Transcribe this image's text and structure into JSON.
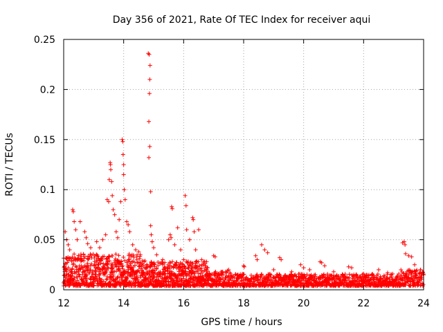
{
  "chart_data": {
    "type": "scatter",
    "title": "Day 356 of 2021, Rate Of TEC Index for receiver aqui",
    "xlabel": "GPS time / hours",
    "ylabel": "ROTI / TECUs",
    "xlim": [
      12,
      24
    ],
    "ylim": [
      0,
      0.25
    ],
    "xticks": [
      "12",
      "14",
      "16",
      "18",
      "20",
      "22",
      "24"
    ],
    "yticks": [
      "0",
      "0.05",
      "0.1",
      "0.15",
      "0.2",
      "0.25"
    ],
    "grid": true,
    "marker": "+",
    "series": [
      {
        "name": "ROTI",
        "color": "#ff0000",
        "points": [
          [
            12.05,
            0.058
          ],
          [
            12.1,
            0.05
          ],
          [
            12.15,
            0.045
          ],
          [
            12.2,
            0.04
          ],
          [
            12.3,
            0.08
          ],
          [
            12.32,
            0.078
          ],
          [
            12.35,
            0.068
          ],
          [
            12.4,
            0.06
          ],
          [
            12.45,
            0.05
          ],
          [
            12.55,
            0.068
          ],
          [
            12.7,
            0.058
          ],
          [
            12.75,
            0.052
          ],
          [
            12.8,
            0.046
          ],
          [
            12.9,
            0.042
          ],
          [
            13.1,
            0.048
          ],
          [
            13.2,
            0.042
          ],
          [
            13.3,
            0.05
          ],
          [
            13.4,
            0.055
          ],
          [
            13.45,
            0.09
          ],
          [
            13.5,
            0.088
          ],
          [
            13.52,
            0.11
          ],
          [
            13.55,
            0.127
          ],
          [
            13.56,
            0.125
          ],
          [
            13.57,
            0.12
          ],
          [
            13.6,
            0.108
          ],
          [
            13.62,
            0.094
          ],
          [
            13.65,
            0.08
          ],
          [
            13.7,
            0.075
          ],
          [
            13.75,
            0.058
          ],
          [
            13.8,
            0.052
          ],
          [
            13.85,
            0.07
          ],
          [
            13.9,
            0.088
          ],
          [
            13.95,
            0.15
          ],
          [
            13.97,
            0.148
          ],
          [
            13.98,
            0.135
          ],
          [
            14.0,
            0.125
          ],
          [
            14.0,
            0.115
          ],
          [
            14.02,
            0.1
          ],
          [
            14.05,
            0.09
          ],
          [
            14.1,
            0.068
          ],
          [
            14.15,
            0.065
          ],
          [
            14.2,
            0.058
          ],
          [
            14.3,
            0.045
          ],
          [
            14.4,
            0.04
          ],
          [
            14.5,
            0.038
          ],
          [
            14.82,
            0.236
          ],
          [
            14.85,
            0.235
          ],
          [
            14.88,
            0.224
          ],
          [
            14.87,
            0.21
          ],
          [
            14.86,
            0.196
          ],
          [
            14.84,
            0.168
          ],
          [
            14.87,
            0.143
          ],
          [
            14.84,
            0.132
          ],
          [
            14.9,
            0.098
          ],
          [
            14.9,
            0.064
          ],
          [
            14.92,
            0.055
          ],
          [
            14.95,
            0.048
          ],
          [
            15.0,
            0.042
          ],
          [
            15.1,
            0.035
          ],
          [
            15.3,
            0.03
          ],
          [
            15.5,
            0.05
          ],
          [
            15.55,
            0.055
          ],
          [
            15.58,
            0.052
          ],
          [
            15.6,
            0.083
          ],
          [
            15.62,
            0.081
          ],
          [
            15.7,
            0.045
          ],
          [
            15.8,
            0.062
          ],
          [
            15.9,
            0.04
          ],
          [
            16.0,
            0.03
          ],
          [
            16.05,
            0.094
          ],
          [
            16.08,
            0.084
          ],
          [
            16.1,
            0.06
          ],
          [
            16.2,
            0.05
          ],
          [
            16.3,
            0.072
          ],
          [
            16.32,
            0.07
          ],
          [
            16.35,
            0.058
          ],
          [
            16.4,
            0.04
          ],
          [
            16.5,
            0.06
          ],
          [
            16.6,
            0.03
          ],
          [
            16.8,
            0.022
          ],
          [
            17.0,
            0.034
          ],
          [
            17.05,
            0.033
          ],
          [
            17.3,
            0.018
          ],
          [
            17.5,
            0.02
          ],
          [
            17.8,
            0.015
          ],
          [
            18.0,
            0.024
          ],
          [
            18.02,
            0.023
          ],
          [
            18.4,
            0.034
          ],
          [
            18.45,
            0.03
          ],
          [
            18.6,
            0.045
          ],
          [
            18.7,
            0.04
          ],
          [
            18.8,
            0.037
          ],
          [
            19.0,
            0.02
          ],
          [
            19.2,
            0.032
          ],
          [
            19.25,
            0.03
          ],
          [
            19.6,
            0.018
          ],
          [
            19.9,
            0.025
          ],
          [
            20.0,
            0.022
          ],
          [
            20.2,
            0.02
          ],
          [
            20.55,
            0.028
          ],
          [
            20.6,
            0.027
          ],
          [
            20.7,
            0.024
          ],
          [
            21.0,
            0.018
          ],
          [
            21.5,
            0.023
          ],
          [
            21.6,
            0.022
          ],
          [
            22.0,
            0.016
          ],
          [
            22.5,
            0.02
          ],
          [
            22.8,
            0.017
          ],
          [
            23.3,
            0.047
          ],
          [
            23.35,
            0.048
          ],
          [
            23.38,
            0.045
          ],
          [
            23.4,
            0.036
          ],
          [
            23.5,
            0.034
          ],
          [
            23.6,
            0.033
          ],
          [
            23.7,
            0.025
          ],
          [
            23.9,
            0.02
          ],
          [
            24.0,
            0.015
          ]
        ]
      }
    ]
  }
}
